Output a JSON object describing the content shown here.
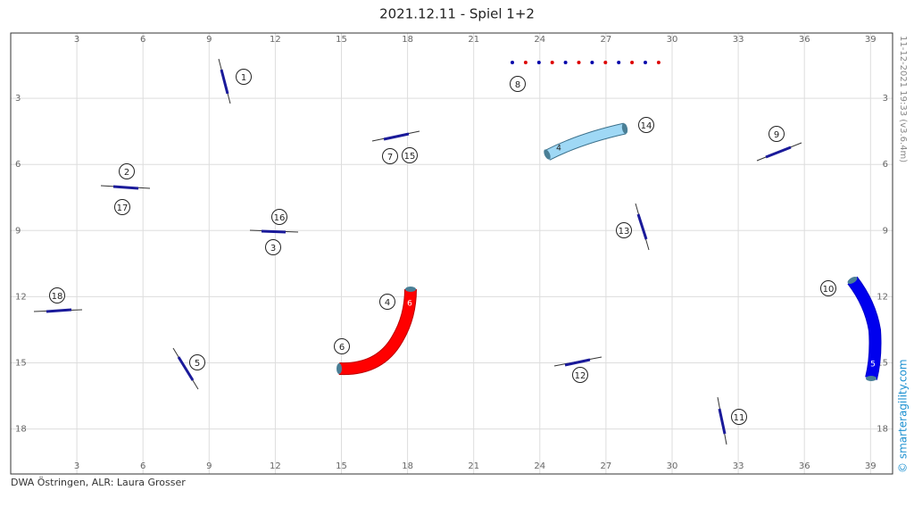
{
  "title": "2021.12.11 - Spiel 1+2",
  "footer": "DWA Östringen, ALR: Laura Grosser",
  "version": "11-12-2021 19:33  (v3.6.4m)",
  "credit": "© smarteragility.com",
  "x_ticks": [
    3,
    6,
    9,
    12,
    15,
    18,
    21,
    24,
    27,
    30,
    33,
    36,
    39
  ],
  "y_ticks": [
    3,
    6,
    9,
    12,
    15,
    18
  ],
  "markers": [
    "1",
    "2",
    "17",
    "16",
    "3",
    "7",
    "15",
    "18",
    "5",
    "8",
    "14",
    "9",
    "13",
    "4",
    "6",
    "12",
    "11",
    "10"
  ],
  "tunnel_labels": [
    "4",
    "6",
    "5"
  ]
}
